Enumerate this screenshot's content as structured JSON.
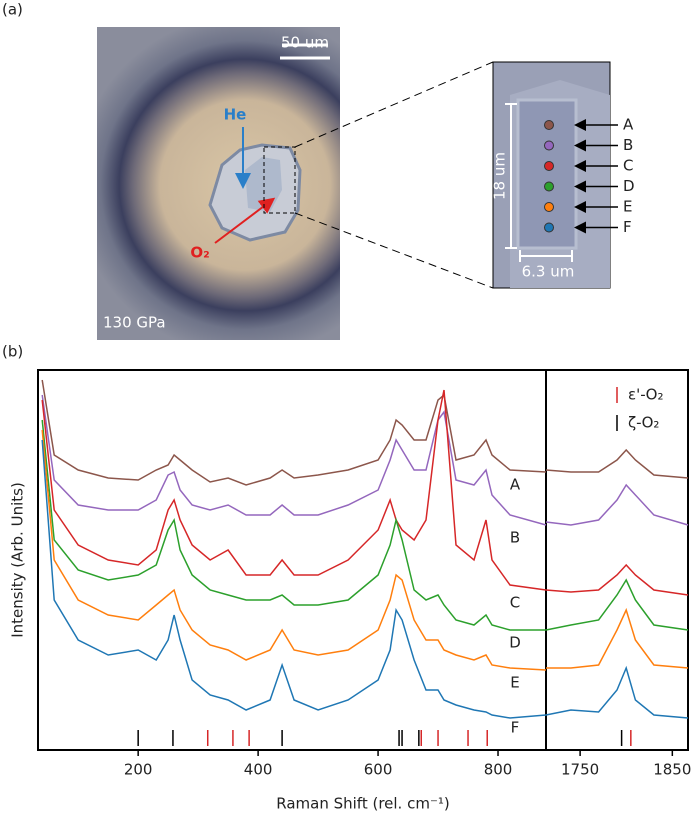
{
  "panel_a": {
    "label": "(a)",
    "scale_bar": "50 um",
    "pressure": "130 GPa",
    "he_label": "He",
    "o2_label": "O₂",
    "inset": {
      "height_label": "18 um",
      "width_label": "6.3 um"
    }
  },
  "chart_data": {
    "type": "line",
    "panel_label": "(b)",
    "y_label": "Intensity (Arb. Units)",
    "x_label": "Raman Shift (rel. cm⁻¹)",
    "x": [
      40,
      60,
      100,
      150,
      200,
      230,
      250,
      260,
      270,
      290,
      320,
      350,
      380,
      420,
      440,
      460,
      500,
      550,
      600,
      620,
      630,
      640,
      660,
      680,
      700,
      710,
      730,
      760,
      780,
      790,
      820,
      880
    ],
    "x2": [
      1713,
      1740,
      1770,
      1790,
      1800,
      1810,
      1830,
      1867
    ],
    "xlim": [
      33,
      880
    ],
    "x2lim": [
      1713,
      1867
    ],
    "xticks": [
      200,
      400,
      600,
      800
    ],
    "x2ticks": [
      1750,
      1850
    ],
    "ylim": [
      0,
      38
    ],
    "series": [
      {
        "name": "A",
        "color": "#8c564b",
        "values": [
          37,
          29.5,
          28,
          27.2,
          27,
          28,
          28.5,
          29.5,
          29,
          28,
          26.8,
          27.2,
          26.5,
          27.2,
          28,
          27.2,
          27.5,
          28,
          29,
          31,
          33,
          32.5,
          31,
          31,
          35,
          35.5,
          29,
          29.5,
          31,
          29.5,
          28,
          27.8
        ],
        "values2": [
          28,
          27.8,
          27.8,
          29,
          30,
          29,
          27.5,
          27.2
        ]
      },
      {
        "name": "B",
        "color": "#9467bd",
        "values": [
          35.5,
          27,
          24.5,
          24,
          24,
          25,
          27.5,
          27.8,
          26,
          24.5,
          24,
          24.5,
          23.5,
          23.5,
          24.5,
          23.5,
          23.5,
          24.5,
          26,
          29,
          31,
          30,
          28,
          28,
          33,
          33.8,
          27,
          26.5,
          28,
          25.5,
          23.5,
          22.5
        ],
        "values2": [
          22.8,
          22.5,
          23,
          25,
          26.5,
          25.5,
          23.5,
          22.5
        ]
      },
      {
        "name": "C",
        "color": "#d62728",
        "values": [
          35,
          24,
          20.5,
          19,
          18.5,
          20,
          24,
          25,
          23,
          20.5,
          19,
          20,
          17.5,
          17.5,
          19,
          17.5,
          17.5,
          19,
          22,
          25,
          23,
          22,
          21,
          23,
          33,
          36,
          20.5,
          19,
          23,
          19,
          16.5,
          16
        ],
        "values2": [
          16,
          15.8,
          16,
          17.5,
          18.5,
          17.5,
          16,
          15.5
        ]
      },
      {
        "name": "D",
        "color": "#2ca02c",
        "values": [
          33,
          21,
          18,
          17,
          17.5,
          18.5,
          22,
          23,
          20,
          17.5,
          16,
          15.5,
          15,
          15,
          15.5,
          14.5,
          14.5,
          15,
          17.5,
          20.5,
          23,
          21,
          16,
          15,
          15.5,
          14.5,
          13,
          12.5,
          13.5,
          12.5,
          12,
          12
        ],
        "values2": [
          12,
          12.5,
          13,
          15.5,
          17,
          15,
          12.5,
          12
        ]
      },
      {
        "name": "E",
        "color": "#ff7f0e",
        "values": [
          32,
          19,
          15,
          13.5,
          13,
          14.5,
          15.5,
          16,
          14,
          12,
          10.5,
          10,
          9,
          10,
          12,
          10,
          9.5,
          10,
          12,
          15,
          17.5,
          17,
          13,
          11,
          11,
          10,
          9.5,
          9,
          9.5,
          8.5,
          8.2,
          8
        ],
        "values2": [
          8.2,
          8.2,
          8.5,
          12,
          14,
          11,
          8.5,
          8.2
        ]
      },
      {
        "name": "F",
        "color": "#1f77b4",
        "values": [
          31,
          15,
          11,
          9.5,
          10,
          9,
          11,
          13.5,
          11,
          7,
          5.5,
          5,
          4,
          5,
          8.5,
          5,
          4,
          5,
          7,
          10,
          14,
          13,
          9,
          6,
          6,
          5,
          4.5,
          4,
          3.8,
          3.5,
          3.2,
          3.5
        ],
        "values2": [
          3.5,
          4,
          3.8,
          6,
          8.2,
          5,
          3.5,
          3.2
        ]
      }
    ],
    "reference_lines": [
      {
        "name": "ε'-O₂",
        "color": "#d62728",
        "positions": [
          316,
          358,
          385,
          672,
          700,
          750,
          782,
          1805
        ]
      },
      {
        "name": "ζ-O₂",
        "color": "#000000",
        "positions": [
          200,
          258,
          440,
          635,
          640,
          668,
          1795
        ]
      }
    ]
  }
}
